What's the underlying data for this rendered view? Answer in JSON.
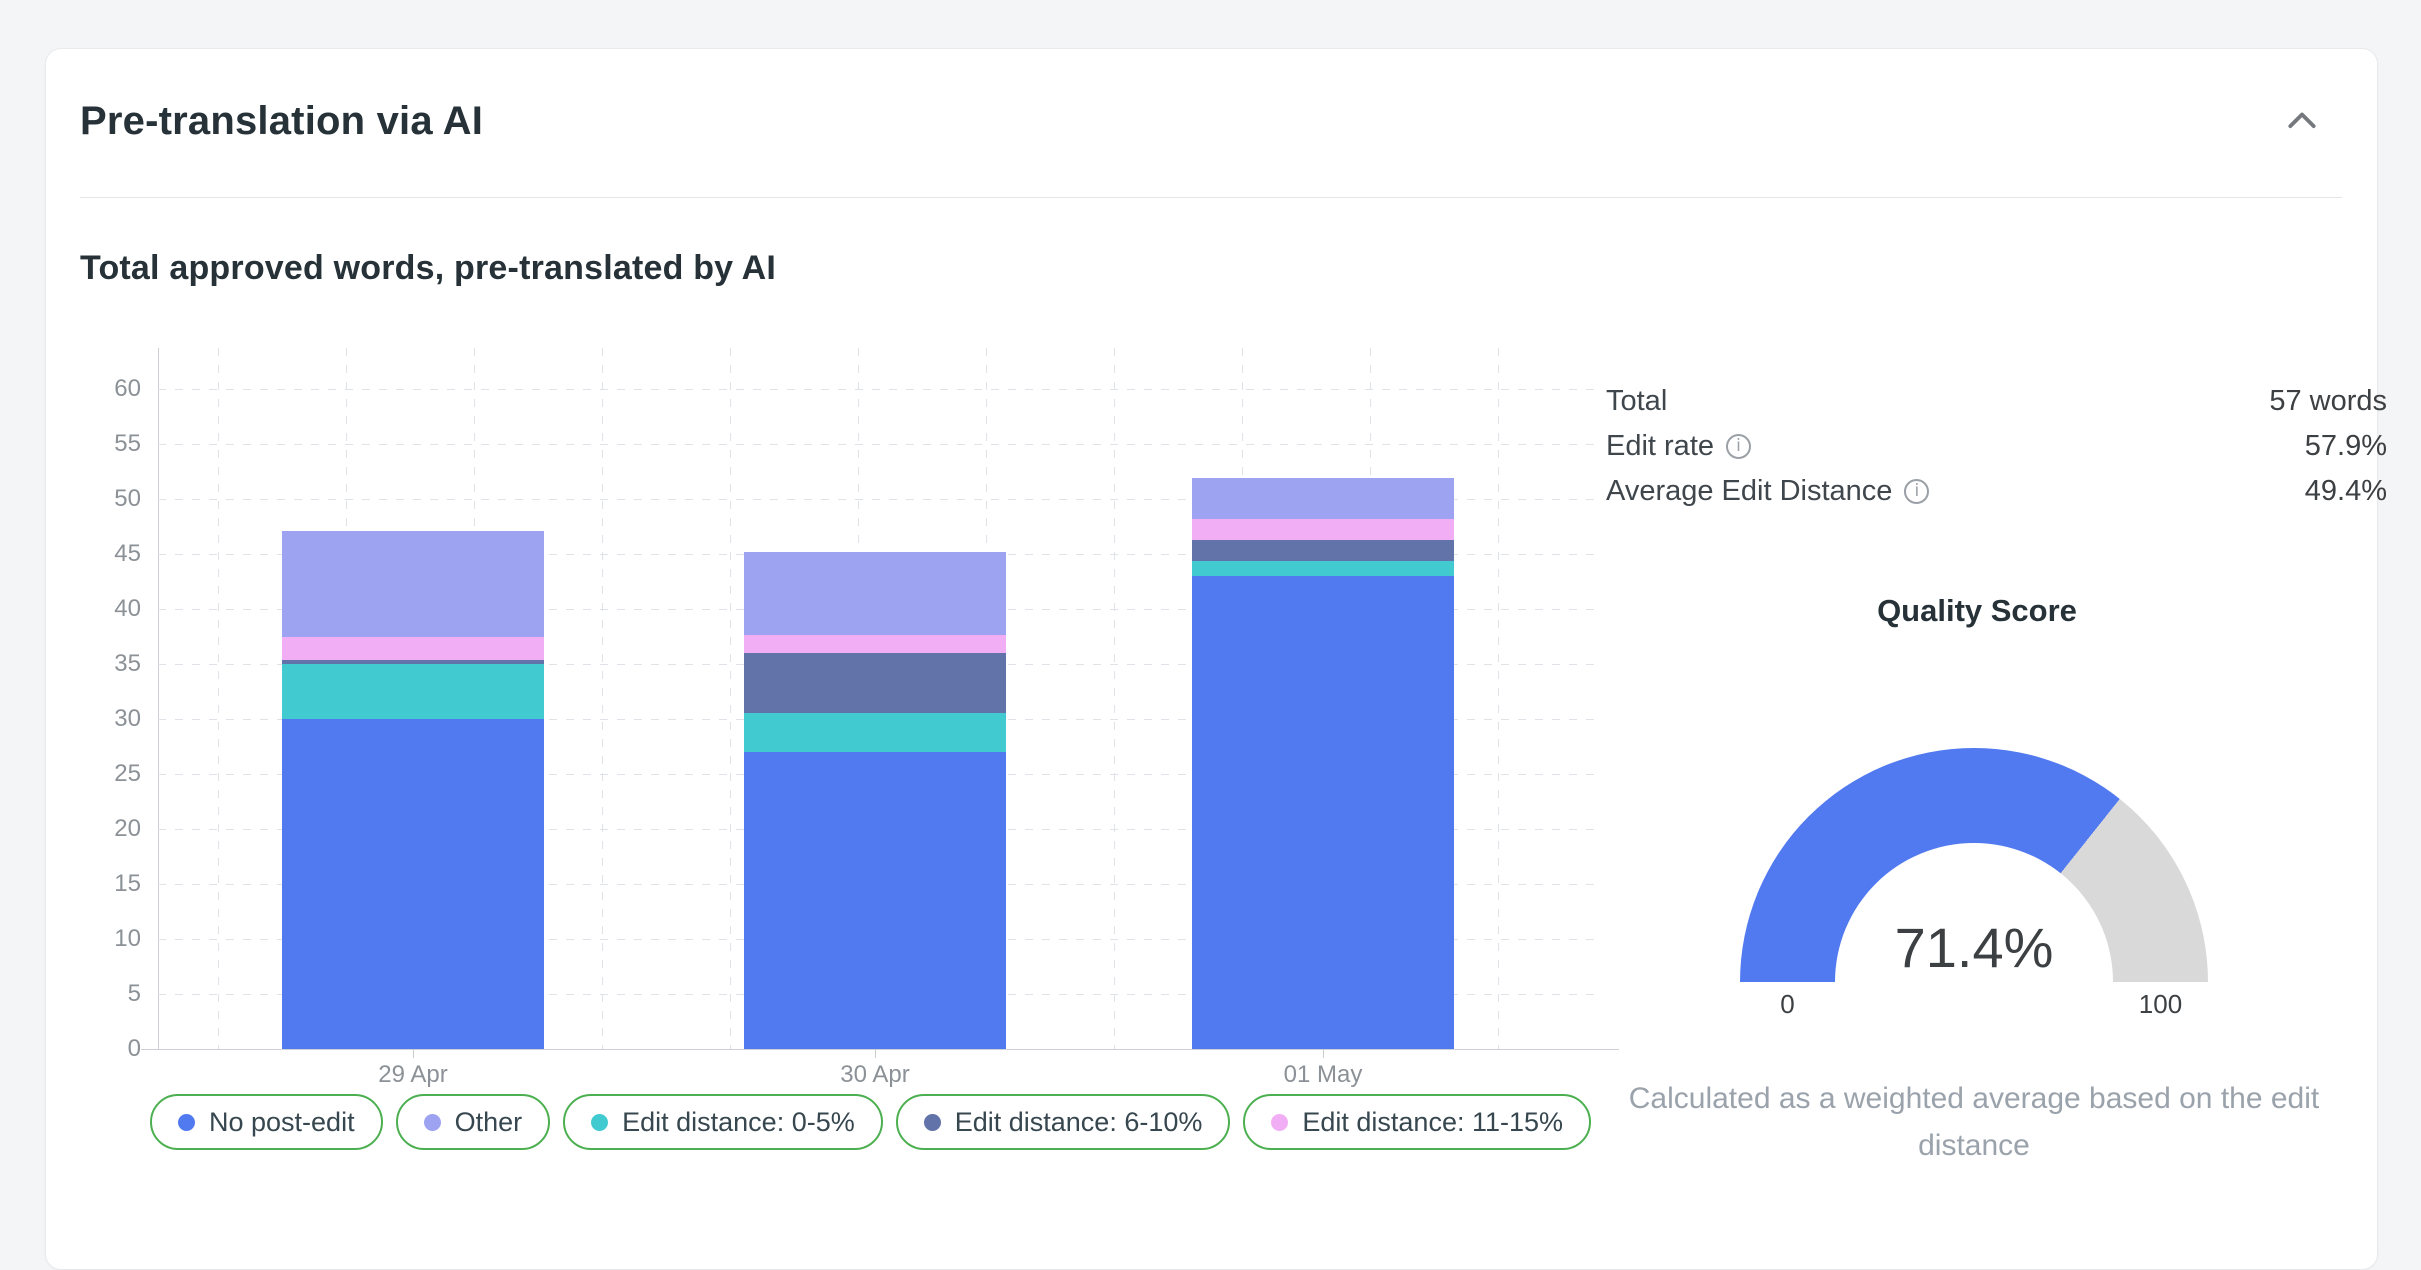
{
  "card": {
    "title": "Pre-translation via AI",
    "section_title": "Total approved words, pre-translated by AI"
  },
  "chart_data": {
    "type": "bar",
    "stacked": true,
    "categories": [
      "29 Apr",
      "30 Apr",
      "01 May"
    ],
    "series": [
      {
        "name": "No post-edit",
        "color": "#527af0",
        "values": [
          30.0,
          27.0,
          43.0
        ]
      },
      {
        "name": "Other",
        "color": "#9da3f0",
        "values": [
          9.6,
          7.6,
          3.7
        ]
      },
      {
        "name": "Edit distance: 0-5%",
        "color": "#41cbd1",
        "values": [
          5.0,
          3.5,
          1.4
        ]
      },
      {
        "name": "Edit distance: 6-10%",
        "color": "#6173a8",
        "values": [
          0.4,
          5.5,
          1.9
        ]
      },
      {
        "name": "Edit distance: 11-15%",
        "color": "#f2aef5",
        "values": [
          2.1,
          1.6,
          1.9
        ]
      }
    ],
    "stack_order_bottom_to_top": [
      0,
      2,
      3,
      4,
      1
    ],
    "title": "Total approved words, pre-translated by AI",
    "xlabel": "",
    "ylabel": "",
    "ylim": [
      0,
      60
    ],
    "ytick_step": 5,
    "grid": "dashed",
    "legend_position": "bottom",
    "legend_border_color": "#4caf50"
  },
  "stats": [
    {
      "label": "Total",
      "value": "57 words",
      "has_info": false
    },
    {
      "label": "Edit rate",
      "value": "57.9%",
      "has_info": true
    },
    {
      "label": "Average Edit Distance",
      "value": "49.4%",
      "has_info": true
    }
  ],
  "gauge": {
    "title": "Quality Score",
    "value": 71.4,
    "display": "71.4%",
    "min_label": "0",
    "max_label": "100",
    "fill_color": "#527af0",
    "track_color": "#d9d9d9",
    "caption": "Calculated as a weighted average based on the edit distance"
  },
  "icons": {
    "collapse": "chevron-up",
    "info": "i"
  }
}
